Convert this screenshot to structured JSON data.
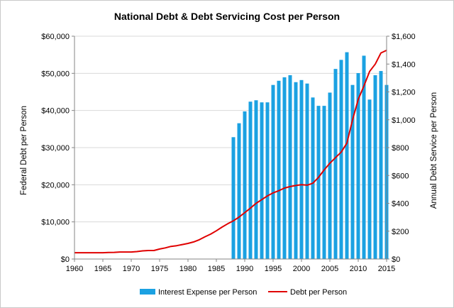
{
  "chart_data": {
    "type": "bar",
    "title": "National Debt & Debt Servicing Cost per Person",
    "xlabel": "",
    "ylabel": "Federal Debt per Person",
    "y2label": "Annual Debt Service per Person",
    "xlim": [
      1960,
      2015
    ],
    "ylim": [
      0,
      60000
    ],
    "y2lim": [
      0,
      1600
    ],
    "x_ticks": [
      "1960",
      "1965",
      "1970",
      "1975",
      "1980",
      "1985",
      "1990",
      "1995",
      "2000",
      "2005",
      "2010",
      "2015"
    ],
    "y_ticks": [
      "$0",
      "$10,000",
      "$20,000",
      "$30,000",
      "$40,000",
      "$50,000",
      "$60,000"
    ],
    "y2_ticks": [
      "$0",
      "$200",
      "$400",
      "$600",
      "$800",
      "$1,000",
      "$1,200",
      "$1,400",
      "$1,600"
    ],
    "grid": "horizontal",
    "legend_position": "bottom",
    "series": [
      {
        "name": "Interest Expense per Person",
        "type": "bar",
        "axis": "right",
        "color": "#1ba1e2",
        "x": [
          1988,
          1989,
          1990,
          1991,
          1992,
          1993,
          1994,
          1995,
          1996,
          1997,
          1998,
          1999,
          2000,
          2001,
          2002,
          2003,
          2004,
          2005,
          2006,
          2007,
          2008,
          2009,
          2010,
          2011,
          2012,
          2013,
          2014,
          2015
        ],
        "values": [
          875,
          975,
          1060,
          1130,
          1140,
          1125,
          1125,
          1250,
          1280,
          1305,
          1320,
          1270,
          1285,
          1260,
          1160,
          1100,
          1100,
          1195,
          1365,
          1430,
          1485,
          1250,
          1335,
          1460,
          1145,
          1320,
          1350,
          1250
        ]
      },
      {
        "name": "Debt per Person",
        "type": "line",
        "axis": "left",
        "color": "#e00000",
        "x": [
          1960,
          1961,
          1962,
          1963,
          1964,
          1965,
          1966,
          1967,
          1968,
          1969,
          1970,
          1971,
          1972,
          1973,
          1974,
          1975,
          1976,
          1977,
          1978,
          1979,
          1980,
          1981,
          1982,
          1983,
          1984,
          1985,
          1986,
          1987,
          1988,
          1989,
          1990,
          1991,
          1992,
          1993,
          1994,
          1995,
          1996,
          1997,
          1998,
          1999,
          2000,
          2001,
          2002,
          2003,
          2004,
          2005,
          2006,
          2007,
          2008,
          2009,
          2010,
          2011,
          2012,
          2013,
          2014,
          2015
        ],
        "values": [
          1700,
          1700,
          1700,
          1700,
          1700,
          1700,
          1750,
          1800,
          1900,
          1900,
          1900,
          2000,
          2200,
          2300,
          2300,
          2700,
          3000,
          3400,
          3600,
          3900,
          4200,
          4600,
          5200,
          6000,
          6700,
          7600,
          8600,
          9500,
          10300,
          11300,
          12500,
          13700,
          15000,
          16000,
          17000,
          17800,
          18400,
          19100,
          19500,
          19800,
          20000,
          19900,
          20400,
          22000,
          24000,
          25800,
          27300,
          28800,
          31200,
          37500,
          43000,
          46600,
          50500,
          52500,
          55500,
          56200
        ]
      }
    ]
  }
}
